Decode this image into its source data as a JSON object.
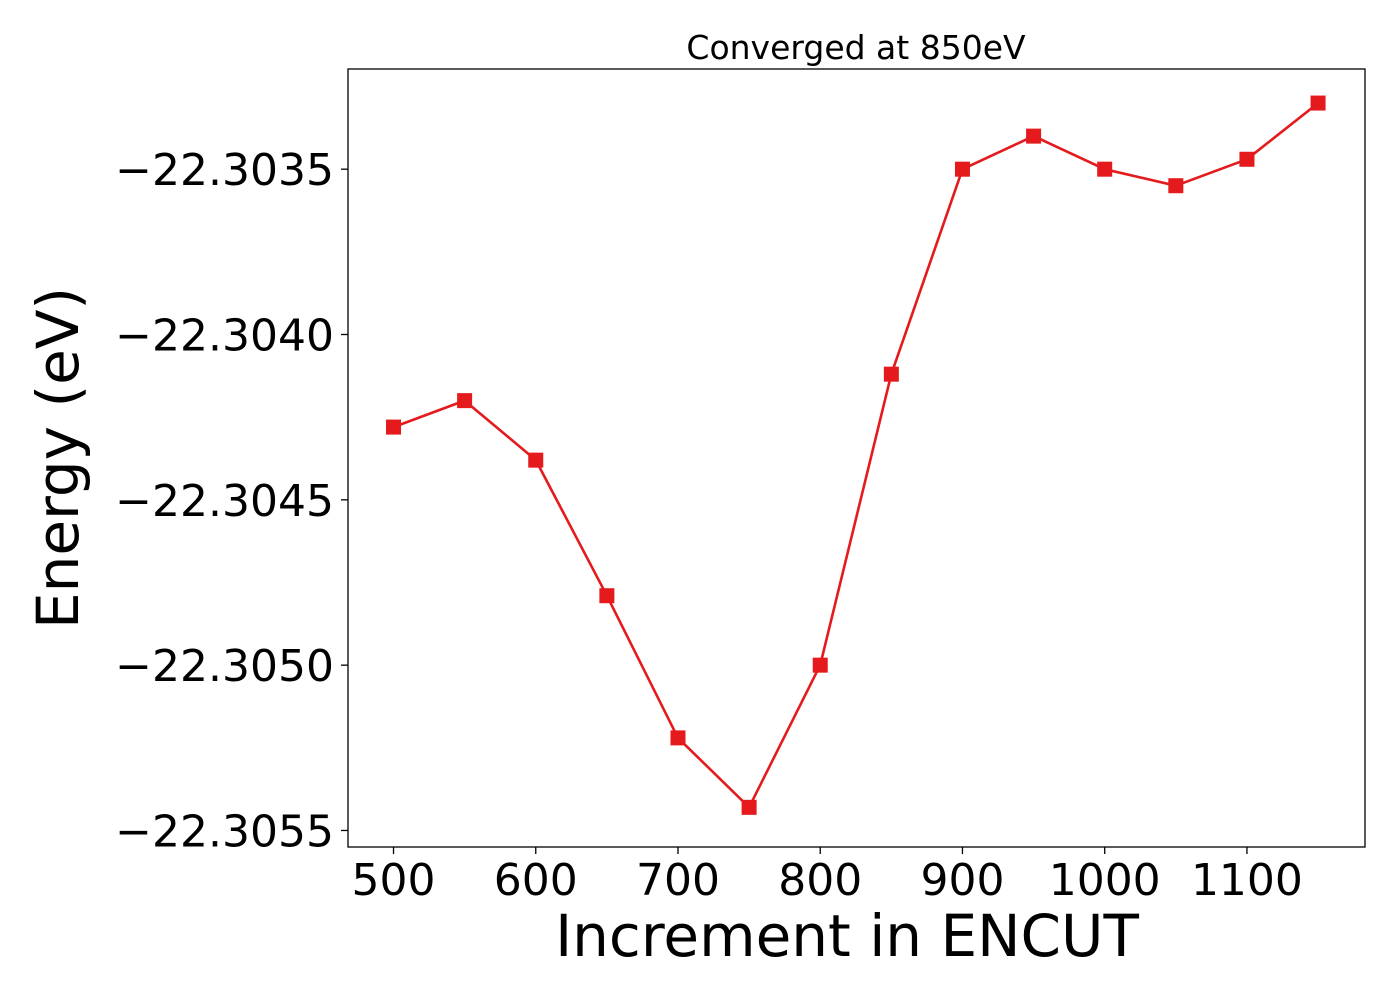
{
  "chart_data": {
    "type": "line",
    "title": "Converged at 850eV",
    "xlabel": "Increment in ENCUT",
    "ylabel": "Energy (eV)",
    "x": [
      500,
      550,
      600,
      650,
      700,
      750,
      800,
      850,
      900,
      950,
      1000,
      1050,
      1100,
      1150
    ],
    "series": [
      {
        "values": [
          -22.30428,
          -22.3042,
          -22.30438,
          -22.30479,
          -22.30522,
          -22.30543,
          -22.305,
          -22.30412,
          -22.3035,
          -22.3034,
          -22.3035,
          -22.30355,
          -22.30347,
          -22.3033
        ],
        "color": "#e41a1c",
        "marker": "square"
      }
    ],
    "xticks": [
      500,
      600,
      700,
      800,
      900,
      1000,
      1100
    ],
    "xtick_labels": [
      "500",
      "600",
      "700",
      "800",
      "900",
      "1000",
      "1100"
    ],
    "yticks": [
      -22.3035,
      -22.304,
      -22.3045,
      -22.305,
      -22.3055
    ],
    "ytick_labels": [
      "−22.3035",
      "−22.3040",
      "−22.3045",
      "−22.3050",
      "−22.3055"
    ],
    "xlim": [
      468,
      1183
    ],
    "ylim": [
      -22.30555,
      -22.303197
    ],
    "grid": false,
    "legend": "none"
  }
}
